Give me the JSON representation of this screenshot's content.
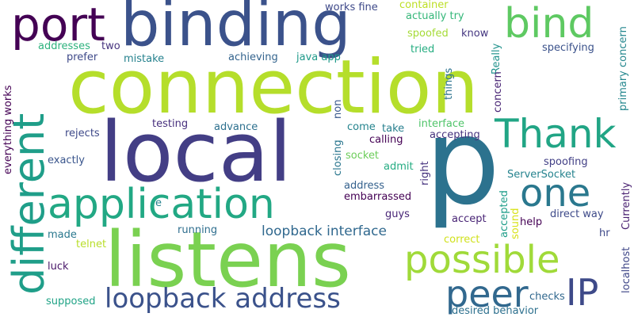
{
  "words": [
    {
      "text": "connection",
      "color": "#b5de2b"
    },
    {
      "text": "binding",
      "color": "#3b528b"
    },
    {
      "text": "local",
      "color": "#433e85"
    },
    {
      "text": "p",
      "color": "#2c728e"
    },
    {
      "text": "listens",
      "color": "#7ad151"
    },
    {
      "text": "port",
      "color": "#440154"
    },
    {
      "text": "bind",
      "color": "#5ec962"
    },
    {
      "text": "Thank",
      "color": "#21a585"
    },
    {
      "text": "application",
      "color": "#22a884"
    },
    {
      "text": "one",
      "color": "#2a788e"
    },
    {
      "text": "different",
      "color": "#1f9e89"
    },
    {
      "text": "possible",
      "color": "#a0da39"
    },
    {
      "text": "peer",
      "color": "#31688e"
    },
    {
      "text": "IP",
      "color": "#3e4a89"
    },
    {
      "text": "loopback address",
      "color": "#3b528b"
    },
    {
      "text": "loopback interface",
      "color": "#30688e"
    },
    {
      "text": "works fine",
      "color": "#3e4989"
    },
    {
      "text": "container",
      "color": "#bddf26"
    },
    {
      "text": "actually try",
      "color": "#35b779"
    },
    {
      "text": "spoofed",
      "color": "#a5db36"
    },
    {
      "text": "know",
      "color": "#453781"
    },
    {
      "text": "Really",
      "color": "#20928c"
    },
    {
      "text": "addresses",
      "color": "#2db27d"
    },
    {
      "text": "two",
      "color": "#46337e"
    },
    {
      "text": "prefer",
      "color": "#3e4989"
    },
    {
      "text": "mistake",
      "color": "#26828e"
    },
    {
      "text": "achieving",
      "color": "#33638d"
    },
    {
      "text": "java app",
      "color": "#1f9a8a"
    },
    {
      "text": "tried",
      "color": "#26ad81"
    },
    {
      "text": "specifying",
      "color": "#3b528b"
    },
    {
      "text": "everything works",
      "color": "#440154"
    },
    {
      "text": "things",
      "color": "#2c728e"
    },
    {
      "text": "concern",
      "color": "#482374"
    },
    {
      "text": "primary concern",
      "color": "#24878e"
    },
    {
      "text": "testing",
      "color": "#472f7d"
    },
    {
      "text": "advance",
      "color": "#2d708e"
    },
    {
      "text": "come",
      "color": "#25848e"
    },
    {
      "text": "take",
      "color": "#277f8e"
    },
    {
      "text": "interface",
      "color": "#50c46a"
    },
    {
      "text": "rejects",
      "color": "#3e4989"
    },
    {
      "text": "non",
      "color": "#38588c"
    },
    {
      "text": "calling",
      "color": "#440154"
    },
    {
      "text": "accepting",
      "color": "#46337e"
    },
    {
      "text": "closing",
      "color": "#2a768e"
    },
    {
      "text": "exactly",
      "color": "#39558c"
    },
    {
      "text": "socket",
      "color": "#6ccd5a"
    },
    {
      "text": "admit",
      "color": "#25ac82"
    },
    {
      "text": "right",
      "color": "#46327e"
    },
    {
      "text": "spoofing",
      "color": "#424086"
    },
    {
      "text": "ServerSocket",
      "color": "#25838e"
    },
    {
      "text": "address",
      "color": "#34618d"
    },
    {
      "text": "embarrassed",
      "color": "#440154"
    },
    {
      "text": "Currently",
      "color": "#481f70"
    },
    {
      "text": "localhost",
      "color": "#3f4788"
    },
    {
      "text": "e",
      "color": "#26828e"
    },
    {
      "text": "running",
      "color": "#2e6e8e"
    },
    {
      "text": "guys",
      "color": "#482576"
    },
    {
      "text": "accepted",
      "color": "#1e9d89"
    },
    {
      "text": "sound",
      "color": "#d8e219"
    },
    {
      "text": "help",
      "color": "#440154"
    },
    {
      "text": "direct way",
      "color": "#3e4a89"
    },
    {
      "text": "accept",
      "color": "#482475"
    },
    {
      "text": "made",
      "color": "#2a788e"
    },
    {
      "text": "telnet",
      "color": "#b8de29"
    },
    {
      "text": "hr",
      "color": "#3e4989"
    },
    {
      "text": "correct",
      "color": "#d0e11c"
    },
    {
      "text": "luck",
      "color": "#481668"
    },
    {
      "text": "supposed",
      "color": "#20a386"
    },
    {
      "text": "checks",
      "color": "#31688e"
    },
    {
      "text": "desired behavior",
      "color": "#2d708e"
    }
  ]
}
